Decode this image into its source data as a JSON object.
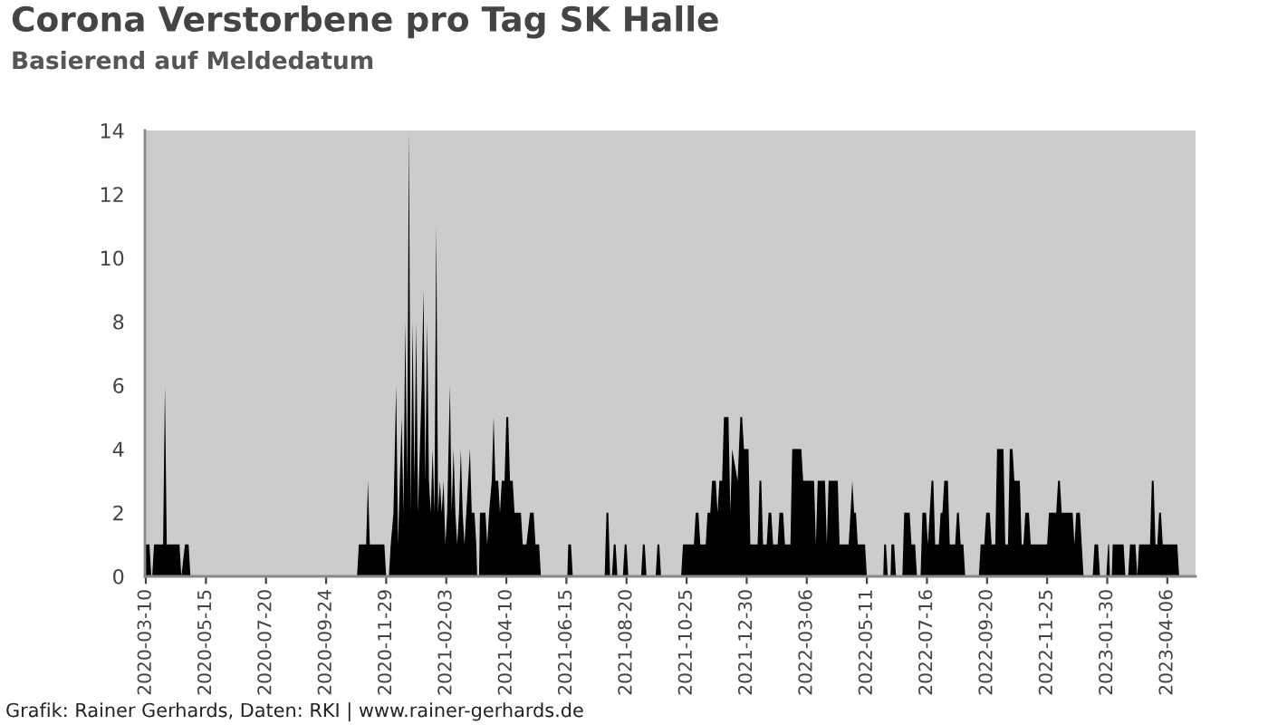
{
  "chart_data": {
    "type": "area",
    "title": "Corona Verstorbene pro Tag SK Halle",
    "subtitle": "Basierend auf Meldedatum",
    "annotations": [
      "Grafik: Rainer Gerhards, Daten: RKI | www.rainer-gerhards.de"
    ],
    "color": "#000000",
    "x": [
      "2020-03-10",
      "2020-03-14",
      "2020-03-16",
      "2020-03-17",
      "2020-03-19",
      "2020-03-29",
      "2020-03-31",
      "2020-04-02",
      "2020-04-16",
      "2020-04-18",
      "2020-04-22",
      "2020-04-26",
      "2020-04-28",
      "2020-10-28",
      "2020-10-30",
      "2020-11-07",
      "2020-11-09",
      "2020-11-11",
      "2020-11-27",
      "2020-11-29",
      "2020-12-02",
      "2020-12-04",
      "2020-12-07",
      "2020-12-10",
      "2020-12-12",
      "2020-12-14",
      "2020-12-16",
      "2020-12-18",
      "2020-12-20",
      "2020-12-22",
      "2020-12-24",
      "2020-12-26",
      "2020-12-28",
      "2020-12-30",
      "2021-01-01",
      "2021-01-03",
      "2021-01-05",
      "2021-01-07",
      "2021-01-09",
      "2021-01-11",
      "2021-01-13",
      "2021-01-15",
      "2021-01-17",
      "2021-01-19",
      "2021-01-21",
      "2021-01-23",
      "2021-01-25",
      "2021-01-27",
      "2021-01-29",
      "2021-01-31",
      "2021-02-02",
      "2021-02-04",
      "2021-02-07",
      "2021-02-09",
      "2021-02-11",
      "2021-02-13",
      "2021-02-15",
      "2021-02-17",
      "2021-02-19",
      "2021-02-21",
      "2021-02-23",
      "2021-02-25",
      "2021-03-01",
      "2021-03-03",
      "2021-03-06",
      "2021-03-08",
      "2021-03-09",
      "2021-03-11",
      "2021-03-12",
      "2021-03-18",
      "2021-03-20",
      "2021-03-22",
      "2021-03-25",
      "2021-03-27",
      "2021-03-29",
      "2021-04-01",
      "2021-04-03",
      "2021-04-05",
      "2021-04-08",
      "2021-04-10",
      "2021-04-12",
      "2021-04-14",
      "2021-04-17",
      "2021-04-19",
      "2021-04-26",
      "2021-04-28",
      "2021-05-02",
      "2021-05-06",
      "2021-05-10",
      "2021-05-12",
      "2021-05-16",
      "2021-05-18",
      "2021-06-16",
      "2021-06-17",
      "2021-06-20",
      "2021-06-22",
      "2021-07-27",
      "2021-07-29",
      "2021-07-31",
      "2021-08-02",
      "2021-08-04",
      "2021-08-06",
      "2021-08-08",
      "2021-08-10",
      "2021-08-16",
      "2021-08-18",
      "2021-08-20",
      "2021-08-22",
      "2021-09-05",
      "2021-09-07",
      "2021-09-09",
      "2021-09-11",
      "2021-09-21",
      "2021-09-23",
      "2021-09-25",
      "2021-09-27",
      "2021-10-19",
      "2021-10-21",
      "2021-11-02",
      "2021-11-04",
      "2021-11-07",
      "2021-11-09",
      "2021-11-15",
      "2021-11-17",
      "2021-11-20",
      "2021-11-22",
      "2021-11-26",
      "2021-11-28",
      "2021-11-30",
      "2021-12-03",
      "2021-12-05",
      "2021-12-10",
      "2021-12-12",
      "2021-12-14",
      "2021-12-20",
      "2021-12-23",
      "2021-12-25",
      "2021-12-27",
      "2022-01-01",
      "2022-01-03",
      "2022-01-11",
      "2022-01-13",
      "2022-01-15",
      "2022-01-17",
      "2022-01-21",
      "2022-01-23",
      "2022-01-26",
      "2022-01-28",
      "2022-02-02",
      "2022-02-04",
      "2022-02-08",
      "2022-02-10",
      "2022-02-16",
      "2022-02-18",
      "2022-02-28",
      "2022-03-02",
      "2022-03-14",
      "2022-03-16",
      "2022-03-18",
      "2022-03-26",
      "2022-03-28",
      "2022-03-30",
      "2022-04-09",
      "2022-04-11",
      "2022-04-21",
      "2022-04-23",
      "2022-04-25",
      "2022-04-27",
      "2022-04-29",
      "2022-05-01",
      "2022-05-09",
      "2022-05-11",
      "2022-05-29",
      "2022-05-30",
      "2022-06-01",
      "2022-06-03",
      "2022-06-06",
      "2022-06-07",
      "2022-06-10",
      "2022-06-12",
      "2022-06-19",
      "2022-06-21",
      "2022-06-27",
      "2022-06-29",
      "2022-07-03",
      "2022-07-05",
      "2022-07-09",
      "2022-07-11",
      "2022-07-15",
      "2022-07-17",
      "2022-07-19",
      "2022-07-21",
      "2022-07-23",
      "2022-07-25",
      "2022-07-29",
      "2022-07-31",
      "2022-08-02",
      "2022-08-04",
      "2022-08-08",
      "2022-08-10",
      "2022-08-16",
      "2022-08-18",
      "2022-08-20",
      "2022-08-22",
      "2022-08-25",
      "2022-08-27",
      "2022-09-11",
      "2022-09-13",
      "2022-09-17",
      "2022-09-19",
      "2022-09-23",
      "2022-09-25",
      "2022-09-29",
      "2022-10-01",
      "2022-10-08",
      "2022-10-10",
      "2022-10-13",
      "2022-10-15",
      "2022-10-18",
      "2022-10-20",
      "2022-10-26",
      "2022-10-28",
      "2022-10-30",
      "2022-11-01",
      "2022-11-05",
      "2022-11-07",
      "2022-11-25",
      "2022-11-27",
      "2022-12-05",
      "2022-12-07",
      "2022-12-09",
      "2022-12-11",
      "2022-12-23",
      "2022-12-25",
      "2022-12-27",
      "2022-12-31",
      "2023-01-02",
      "2023-01-04",
      "2023-01-14",
      "2023-01-16",
      "2023-01-20",
      "2023-01-22",
      "2023-01-29",
      "2023-01-31",
      "2023-02-01",
      "2023-02-02",
      "2023-02-04",
      "2023-02-05",
      "2023-02-17",
      "2023-02-19",
      "2023-02-22",
      "2023-02-24",
      "2023-03-02",
      "2023-03-04",
      "2023-03-06",
      "2023-03-18",
      "2023-03-20",
      "2023-03-22",
      "2023-03-24",
      "2023-03-26",
      "2023-03-28",
      "2023-03-30",
      "2023-04-01",
      "2023-04-17",
      "2023-04-19",
      "2023-05-04"
    ],
    "values": [
      1,
      1,
      0,
      0,
      1,
      1,
      6,
      1,
      1,
      0,
      1,
      1,
      0,
      0,
      1,
      1,
      3,
      1,
      1,
      0,
      0,
      1,
      2,
      6,
      1,
      3,
      5,
      2,
      8,
      3,
      14,
      2,
      8,
      3,
      8,
      2,
      4,
      6,
      9,
      3,
      8,
      3,
      2,
      4,
      2,
      11,
      2,
      3,
      2,
      3,
      1,
      2,
      6,
      2,
      4,
      2,
      1,
      2,
      4,
      2,
      1,
      2,
      4,
      2,
      2,
      1,
      0,
      0,
      2,
      2,
      1,
      2,
      3,
      5,
      3,
      3,
      2,
      3,
      3,
      5,
      5,
      3,
      3,
      2,
      2,
      1,
      1,
      2,
      2,
      1,
      1,
      0,
      0,
      1,
      1,
      0,
      0,
      2,
      2,
      0,
      0,
      1,
      1,
      0,
      0,
      1,
      1,
      0,
      0,
      1,
      1,
      0,
      0,
      1,
      1,
      0,
      0,
      1,
      1,
      2,
      2,
      1,
      1,
      2,
      2,
      3,
      3,
      2,
      3,
      3,
      5,
      5,
      2,
      4,
      3,
      5,
      5,
      4,
      4,
      1,
      1,
      3,
      3,
      1,
      1,
      2,
      2,
      1,
      1,
      2,
      2,
      1,
      1,
      4,
      4,
      3,
      3,
      1,
      3,
      3,
      1,
      3,
      3,
      1,
      1,
      2,
      3,
      2,
      2,
      1,
      1,
      0,
      0,
      1,
      1,
      0,
      0,
      1,
      1,
      0,
      0,
      2,
      2,
      1,
      1,
      0,
      0,
      2,
      2,
      1,
      2,
      3,
      3,
      1,
      1,
      2,
      2,
      3,
      3,
      1,
      1,
      2,
      2,
      1,
      1,
      0,
      0,
      1,
      1,
      2,
      2,
      1,
      1,
      4,
      4,
      1,
      1,
      4,
      4,
      3,
      3,
      1,
      1,
      2,
      2,
      1,
      1,
      2,
      2,
      3,
      3,
      2,
      2,
      1,
      2,
      2,
      1,
      0,
      0,
      1,
      1,
      0,
      0,
      1,
      1,
      0,
      0,
      1,
      1,
      0,
      0,
      1,
      1,
      0,
      1,
      1,
      3,
      3,
      1,
      1,
      2,
      2,
      1,
      1,
      0,
      0
    ],
    "xlim": [
      "2020-03-09",
      "2023-05-07"
    ],
    "xticks": [
      {
        "value": "2020-03-10",
        "label": "2020-03-10"
      },
      {
        "value": "2020-05-15",
        "label": "2020-05-15"
      },
      {
        "value": "2020-07-20",
        "label": "2020-07-20"
      },
      {
        "value": "2020-09-24",
        "label": "2020-09-24"
      },
      {
        "value": "2020-11-29",
        "label": "2020-11-29"
      },
      {
        "value": "2021-02-03",
        "label": "2021-02-03"
      },
      {
        "value": "2021-04-10",
        "label": "2021-04-10"
      },
      {
        "value": "2021-06-15",
        "label": "2021-06-15"
      },
      {
        "value": "2021-08-20",
        "label": "2021-08-20"
      },
      {
        "value": "2021-10-25",
        "label": "2021-10-25"
      },
      {
        "value": "2021-12-30",
        "label": "2021-12-30"
      },
      {
        "value": "2022-03-06",
        "label": "2022-03-06"
      },
      {
        "value": "2022-05-11",
        "label": "2022-05-11"
      },
      {
        "value": "2022-07-16",
        "label": "2022-07-16"
      },
      {
        "value": "2022-09-20",
        "label": "2022-09-20"
      },
      {
        "value": "2022-11-25",
        "label": "2022-11-25"
      },
      {
        "value": "2023-01-30",
        "label": "2023-01-30"
      },
      {
        "value": "2023-04-06",
        "label": "2023-04-06"
      }
    ],
    "ylim": [
      0,
      14
    ],
    "yticks": [
      0,
      2,
      4,
      6,
      8,
      10,
      12,
      14
    ]
  }
}
